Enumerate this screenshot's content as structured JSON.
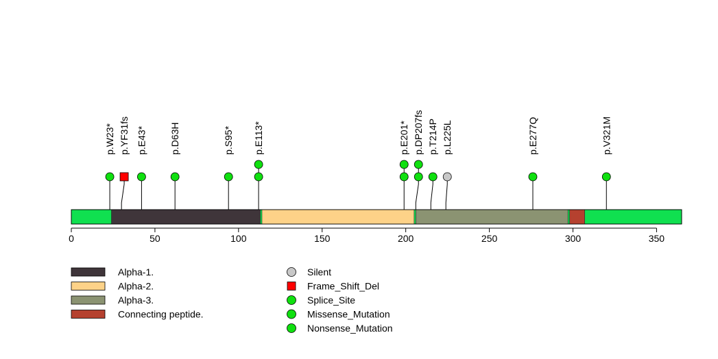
{
  "chart_data": {
    "type": "lollipop",
    "protein_length": 365,
    "xlim": [
      0,
      365
    ],
    "x_ticks": [
      0,
      50,
      100,
      150,
      200,
      250,
      300,
      350
    ],
    "backbone_color": "#10e050",
    "domains": [
      {
        "name": "Alpha-1.",
        "start": 24,
        "end": 113,
        "color": "#3f353a"
      },
      {
        "name": "Alpha-2.",
        "start": 114,
        "end": 205,
        "color": "#fdd288"
      },
      {
        "name": "Alpha-3.",
        "start": 206,
        "end": 297,
        "color": "#8b9372"
      },
      {
        "name": "Connecting peptide.",
        "start": 298,
        "end": 307,
        "color": "#b5412f"
      }
    ],
    "mutations": [
      {
        "label": "p.W23*",
        "position": 23,
        "count": 1,
        "type": "Nonsense_Mutation",
        "color": "#10e010"
      },
      {
        "label": "p.YF31fs",
        "position": 30,
        "count": 1,
        "type": "Frame_Shift_Del",
        "color": "#ff0000"
      },
      {
        "label": "p.E43*",
        "position": 42,
        "count": 1,
        "type": "Nonsense_Mutation",
        "color": "#10e010"
      },
      {
        "label": "p.D63H",
        "position": 62,
        "count": 1,
        "type": "Missense_Mutation",
        "color": "#10e010"
      },
      {
        "label": "p.S95*",
        "position": 94,
        "count": 1,
        "type": "Nonsense_Mutation",
        "color": "#10e010"
      },
      {
        "label": "p.E113*",
        "position": 112,
        "count": 2,
        "type": "Nonsense_Mutation",
        "color": "#10e010"
      },
      {
        "label": "p.E201*",
        "position": 199,
        "count": 2,
        "type": "Nonsense_Mutation",
        "color": "#10e010"
      },
      {
        "label": "p.DP207fs",
        "position": 206,
        "count": 2,
        "type": "Splice_Site",
        "color": "#10e010"
      },
      {
        "label": "p.T214P",
        "position": 215,
        "count": 1,
        "type": "Missense_Mutation",
        "color": "#10e010"
      },
      {
        "label": "p.L225L",
        "position": 224,
        "count": 1,
        "type": "Silent",
        "color": "#c8c8c8"
      },
      {
        "label": "p.E277Q",
        "position": 276,
        "count": 1,
        "type": "Missense_Mutation",
        "color": "#10e010"
      },
      {
        "label": "p.V321M",
        "position": 320,
        "count": 1,
        "type": "Missense_Mutation",
        "color": "#10e010"
      }
    ],
    "domain_legend": [
      {
        "name": "Alpha-1.",
        "color": "#3f353a"
      },
      {
        "name": "Alpha-2.",
        "color": "#fdd288"
      },
      {
        "name": "Alpha-3.",
        "color": "#8b9372"
      },
      {
        "name": "Connecting peptide.",
        "color": "#b5412f"
      }
    ],
    "mutation_legend": [
      {
        "name": "Silent",
        "shape": "circle",
        "color": "#c8c8c8"
      },
      {
        "name": "Frame_Shift_Del",
        "shape": "square",
        "color": "#ff0000"
      },
      {
        "name": "Splice_Site",
        "shape": "circle",
        "color": "#10e010"
      },
      {
        "name": "Missense_Mutation",
        "shape": "circle",
        "color": "#10e010"
      },
      {
        "name": "Nonsense_Mutation",
        "shape": "circle",
        "color": "#10e010"
      }
    ]
  }
}
